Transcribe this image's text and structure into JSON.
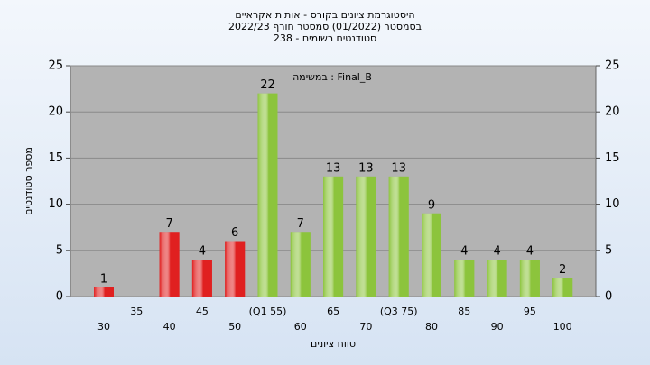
{
  "chart_data": {
    "type": "bar",
    "title": "היסטוגרמת ציונים בקורס - אותות אקראיים",
    "subtitle": "בסמסטר (01/2022) סמסטר חורף 2022/23",
    "subtitle2": "סטודנטים רשומים - 238",
    "annotation": "במשימה : Final_B",
    "xlabel": "טווח ציונים",
    "ylabel": "מספר סטודנטים",
    "categories": [
      "30",
      "35",
      "40",
      "45",
      "50",
      "(Q1 55)",
      "60",
      "65",
      "70",
      "(Q3 75)",
      "80",
      "85",
      "90",
      "95",
      "100"
    ],
    "values": [
      1,
      0,
      7,
      4,
      6,
      22,
      7,
      13,
      13,
      13,
      9,
      4,
      4,
      4,
      2
    ],
    "colors": [
      "#e02020",
      "#e02020",
      "#e02020",
      "#e02020",
      "#e02020",
      "#8cc43c",
      "#8cc43c",
      "#8cc43c",
      "#8cc43c",
      "#8cc43c",
      "#8cc43c",
      "#8cc43c",
      "#8cc43c",
      "#8cc43c",
      "#8cc43c"
    ],
    "ylim": [
      0,
      25
    ],
    "yticks": [
      0,
      5,
      10,
      15,
      20,
      25
    ],
    "y2lim": [
      0,
      25
    ],
    "y2ticks": [
      0,
      5,
      10,
      15,
      20,
      25
    ],
    "grid": true
  }
}
